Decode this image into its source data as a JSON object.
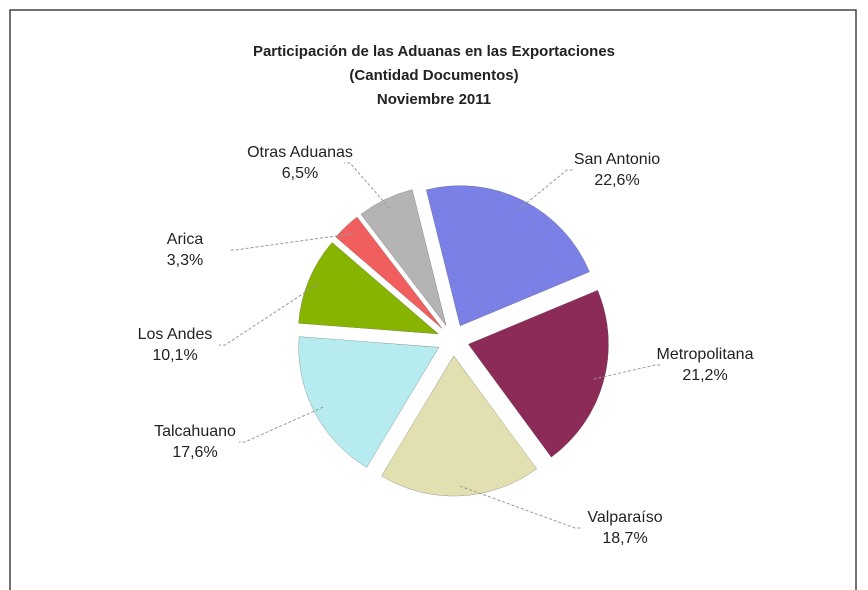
{
  "chart_data": {
    "type": "pie",
    "title": [
      "Participación de las Aduanas en las Exportaciones",
      "(Cantidad Documentos)",
      "Noviembre 2011"
    ],
    "categories": [
      "San Antonio",
      "Metropolitana",
      "Valparaíso",
      "Talcahuano",
      "Los Andes",
      "Arica",
      "Otras Aduanas"
    ],
    "values": [
      22.6,
      21.2,
      18.7,
      17.6,
      10.1,
      3.3,
      6.5
    ],
    "value_labels": [
      "22,6%",
      "21,2%",
      "18,7%",
      "17,6%",
      "10,1%",
      "3,3%",
      "6,5%"
    ],
    "colors": [
      "#7b80e6",
      "#8c2a58",
      "#e2e0b0",
      "#b6ecef",
      "#86b400",
      "#f05e5e",
      "#b4b4b4"
    ]
  }
}
